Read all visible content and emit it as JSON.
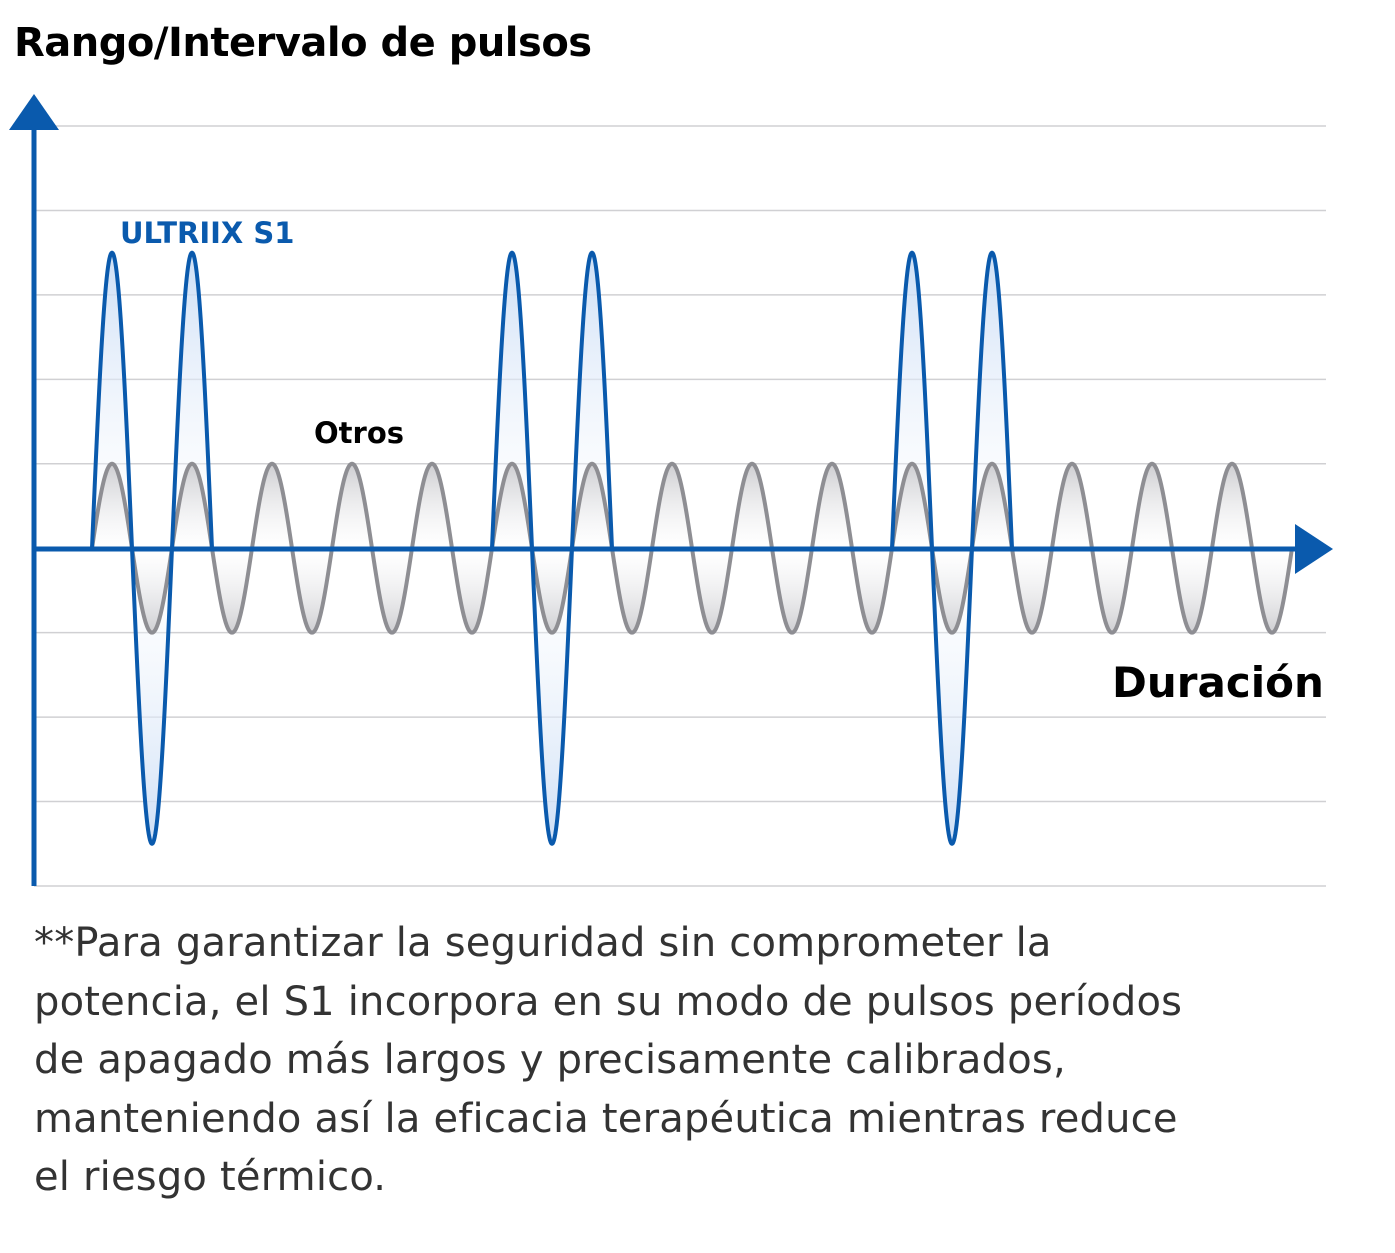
{
  "chart_data": {
    "type": "line",
    "title": "Rango/Intervalo de pulsos",
    "xlabel": "Duración",
    "ylabel": "Rango/Intervalo de pulsos",
    "xlim": [
      -0.725,
      15.4
    ],
    "ylim": [
      -4,
      5
    ],
    "grid": true,
    "x_unit": "cycles",
    "series": [
      {
        "name": "ULTRIIX S1",
        "color": "#0a5aad",
        "amplitude": 3.5,
        "period": 1,
        "segments": [
          [
            0,
            1.5
          ],
          [
            5,
            6.5
          ],
          [
            10,
            11.5
          ]
        ]
      },
      {
        "name": "Otros",
        "color": "#8e8e93",
        "amplitude": 1,
        "period": 1,
        "segments": [
          [
            0,
            15
          ]
        ]
      }
    ],
    "annotations": [
      "ULTRIIX S1",
      "Otros"
    ]
  },
  "footnote": [
    "**Para garantizar la seguridad sin comprometer la",
    "potencia, el S1 incorpora en su modo de pulsos períodos",
    "de apagado más largos y precisamente calibrados,",
    "manteniendo así la eficacia terapéutica mientras reduce",
    "el riesgo térmico."
  ]
}
